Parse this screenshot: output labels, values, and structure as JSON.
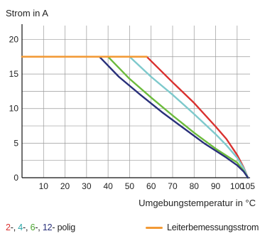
{
  "chart_data": {
    "type": "line",
    "ylabel": "Strom in A",
    "xlabel": "Umgebungstemperatur in °C",
    "xlim": [
      0,
      106
    ],
    "ylim": [
      0,
      22
    ],
    "x_ticks": [
      10,
      20,
      30,
      40,
      50,
      60,
      70,
      80,
      90,
      100,
      105
    ],
    "y_ticks": [
      0,
      5,
      10,
      15,
      20
    ],
    "grid": true,
    "series": [
      {
        "name": "2",
        "color": "#d9312f",
        "points": [
          [
            0,
            17.5
          ],
          [
            58,
            17.5
          ],
          [
            70,
            13.8
          ],
          [
            80,
            10.8
          ],
          [
            90,
            7.4
          ],
          [
            95,
            5.6
          ],
          [
            100,
            3.3
          ],
          [
            103,
            1.5
          ],
          [
            105,
            0
          ]
        ]
      },
      {
        "name": "4",
        "color": "#7ec9cc",
        "points": [
          [
            0,
            17.5
          ],
          [
            50,
            17.5
          ],
          [
            60,
            14.6
          ],
          [
            70,
            12.0
          ],
          [
            80,
            9.2
          ],
          [
            90,
            6.3
          ],
          [
            95,
            4.7
          ],
          [
            100,
            2.9
          ],
          [
            103,
            1.4
          ],
          [
            105,
            0
          ]
        ]
      },
      {
        "name": "6",
        "color": "#6cbb3c",
        "points": [
          [
            0,
            17.5
          ],
          [
            40,
            17.5
          ],
          [
            50,
            14.3
          ],
          [
            60,
            11.6
          ],
          [
            70,
            9.0
          ],
          [
            80,
            6.5
          ],
          [
            90,
            4.2
          ],
          [
            100,
            2.2
          ],
          [
            103,
            1.0
          ],
          [
            105,
            0
          ]
        ]
      },
      {
        "name": "12",
        "color": "#29307a",
        "points": [
          [
            0,
            17.5
          ],
          [
            36,
            17.5
          ],
          [
            45,
            14.6
          ],
          [
            55,
            12.0
          ],
          [
            65,
            9.5
          ],
          [
            75,
            7.2
          ],
          [
            85,
            4.9
          ],
          [
            95,
            2.9
          ],
          [
            100,
            1.8
          ],
          [
            103,
            0.9
          ],
          [
            105,
            0
          ]
        ]
      },
      {
        "name": "Leiterbemessungsstrom",
        "color": "#f29a36",
        "points": [
          [
            0,
            17.5
          ],
          [
            58,
            17.5
          ]
        ]
      }
    ]
  },
  "legend": {
    "left": [
      {
        "text": "2",
        "color": "#d9312f"
      },
      {
        "text": "-, ",
        "color": "#222222"
      },
      {
        "text": "4",
        "color": "#2aa6a8"
      },
      {
        "text": "-, ",
        "color": "#222222"
      },
      {
        "text": "6",
        "color": "#4aa52e"
      },
      {
        "text": "-, ",
        "color": "#222222"
      },
      {
        "text": "12",
        "color": "#29307a"
      },
      {
        "text": "- polig",
        "color": "#222222"
      }
    ],
    "right_label": "Leiterbemessungsstrom",
    "right_color": "#f29a36"
  }
}
